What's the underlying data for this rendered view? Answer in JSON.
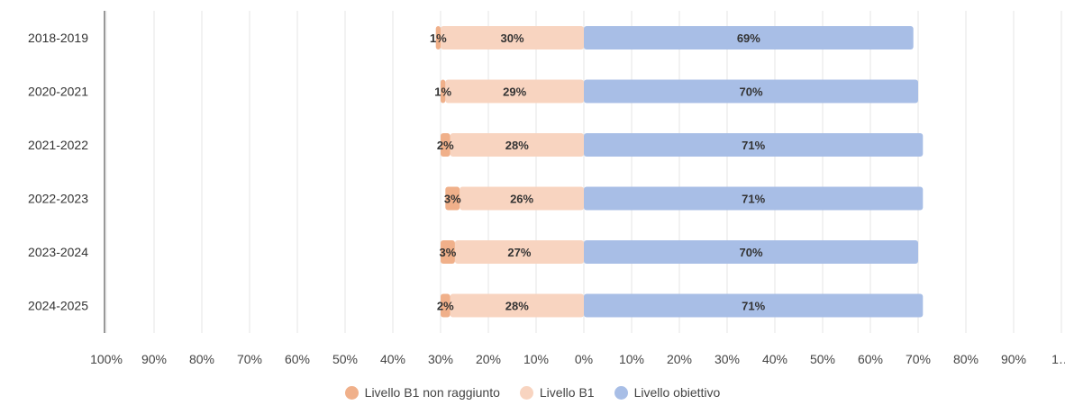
{
  "chart_data": {
    "type": "bar",
    "orientation": "horizontal",
    "stacking": "diverging",
    "categories": [
      "2018-2019",
      "2020-2021",
      "2021-2022",
      "2022-2023",
      "2023-2024",
      "2024-2025"
    ],
    "series": [
      {
        "name": "Livello B1 non raggiunto",
        "side": "negative",
        "color": "#f0b08a",
        "values": [
          1,
          1,
          2,
          3,
          3,
          2
        ],
        "labels": [
          "1%",
          "1%",
          "2%",
          "3%",
          "3%",
          "2%"
        ]
      },
      {
        "name": "Livello B1",
        "side": "negative",
        "color": "#f8d4c0",
        "values": [
          30,
          29,
          28,
          26,
          27,
          28
        ],
        "labels": [
          "30%",
          "29%",
          "28%",
          "26%",
          "27%",
          "28%"
        ]
      },
      {
        "name": "Livello obiettivo",
        "side": "positive",
        "color": "#a8bee6",
        "values": [
          69,
          70,
          71,
          71,
          70,
          71
        ],
        "labels": [
          "69%",
          "70%",
          "71%",
          "71%",
          "70%",
          "71%"
        ]
      }
    ],
    "xlim": [
      -100,
      100
    ],
    "x_ticks": [
      "100%",
      "90%",
      "80%",
      "70%",
      "60%",
      "50%",
      "40%",
      "30%",
      "20%",
      "10%",
      "0%",
      "10%",
      "20%",
      "30%",
      "40%",
      "50%",
      "60%",
      "70%",
      "80%",
      "90%",
      "1…"
    ],
    "grid": true,
    "legend_position": "bottom"
  }
}
